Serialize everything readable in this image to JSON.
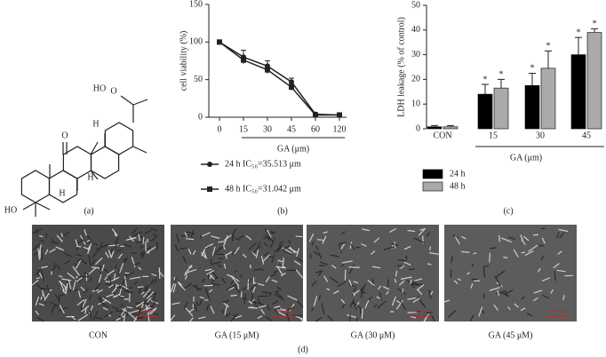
{
  "chart_data": [
    {
      "type": "line",
      "ylabel": "cell viability (%)",
      "xlabel": "GA (μm)",
      "categories": [
        "0",
        "15",
        "30",
        "45",
        "60",
        "120"
      ],
      "ylim": [
        0,
        150
      ],
      "yticks": [
        0,
        50,
        100,
        150
      ],
      "series": [
        {
          "name": "24 h IC₅₀=35.513 μm",
          "color": "#222222",
          "marker": "circle",
          "values": [
            100,
            80,
            68,
            47,
            4,
            3
          ],
          "errors": [
            1,
            9,
            7,
            5,
            2,
            1
          ]
        },
        {
          "name": "48 h IC₅₀=31.042 μm",
          "color": "#222222",
          "marker": "square",
          "values": [
            100,
            76,
            63,
            40,
            3,
            3
          ],
          "errors": [
            1,
            4,
            5,
            4,
            1,
            1
          ]
        }
      ]
    },
    {
      "type": "bar",
      "ylabel": "LDH leakage (% of control)",
      "xlabel": "GA (μm)",
      "categories": [
        "CON",
        "15",
        "30",
        "45"
      ],
      "ylim": [
        0,
        50
      ],
      "yticks": [
        0,
        10,
        20,
        30,
        40,
        50
      ],
      "series": [
        {
          "name": "24 h",
          "color": "#000000",
          "values": [
            0.8,
            14,
            17.5,
            30
          ],
          "errors": [
            0.5,
            4,
            5,
            7
          ],
          "significance": [
            null,
            "*",
            "*",
            "*"
          ]
        },
        {
          "name": "48 h",
          "color": "#aaaaaa",
          "values": [
            0.8,
            16.5,
            24.5,
            39
          ],
          "errors": [
            0.5,
            3.5,
            7,
            1.5
          ],
          "significance": [
            null,
            "*",
            "*",
            "*"
          ]
        }
      ]
    }
  ],
  "panel_labels": [
    "(a)",
    "(b)",
    "(c)",
    "(d)"
  ],
  "structure_labels": [
    "HO",
    "O",
    "O",
    "H",
    "H",
    "H",
    "HO"
  ],
  "micrographs": {
    "captions": [
      "CON",
      "GA (15 μM)",
      "GA (30 μM)",
      "GA (45 μM)"
    ],
    "scale_bar": "100 μm"
  }
}
